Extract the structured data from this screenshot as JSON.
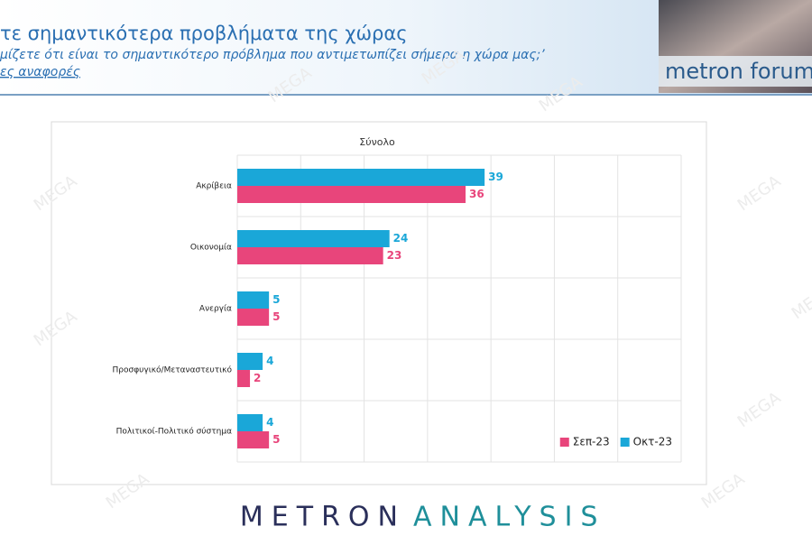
{
  "header": {
    "title": "τε σημαντικότερα προβλήματα της χώρας",
    "subtitle": "μίζετε ότι είναι το σημαντικότερο πρόβλημα που αντιμετωπίζει σήμερα η χώρα μας;’",
    "note": "ες αναφορές",
    "logo": "metron forum"
  },
  "footer": {
    "brand_left": "METRON",
    "brand_right": "ANALYSIS"
  },
  "watermark": "MEGA",
  "chart_data": {
    "type": "hbar",
    "title": "Σύνολο",
    "categories": [
      "Ακρίβεια",
      "Οικονομία",
      "Ανεργία",
      "Προσφυγικό/Μεταναστευτικό",
      "Πολιτικοί-Πολιτικό σύστημα"
    ],
    "series": [
      {
        "name": "Οκτ-23",
        "color": "#1aa7d8",
        "values": [
          39,
          24,
          5,
          4,
          4
        ]
      },
      {
        "name": "Σεπ-23",
        "color": "#e8457b",
        "values": [
          36,
          23,
          5,
          2,
          5
        ]
      }
    ],
    "xlim": [
      0,
      70
    ],
    "xticks": [
      0,
      10,
      20,
      30,
      40,
      50,
      60,
      70
    ],
    "grid": true,
    "legend": "bottom-right"
  }
}
